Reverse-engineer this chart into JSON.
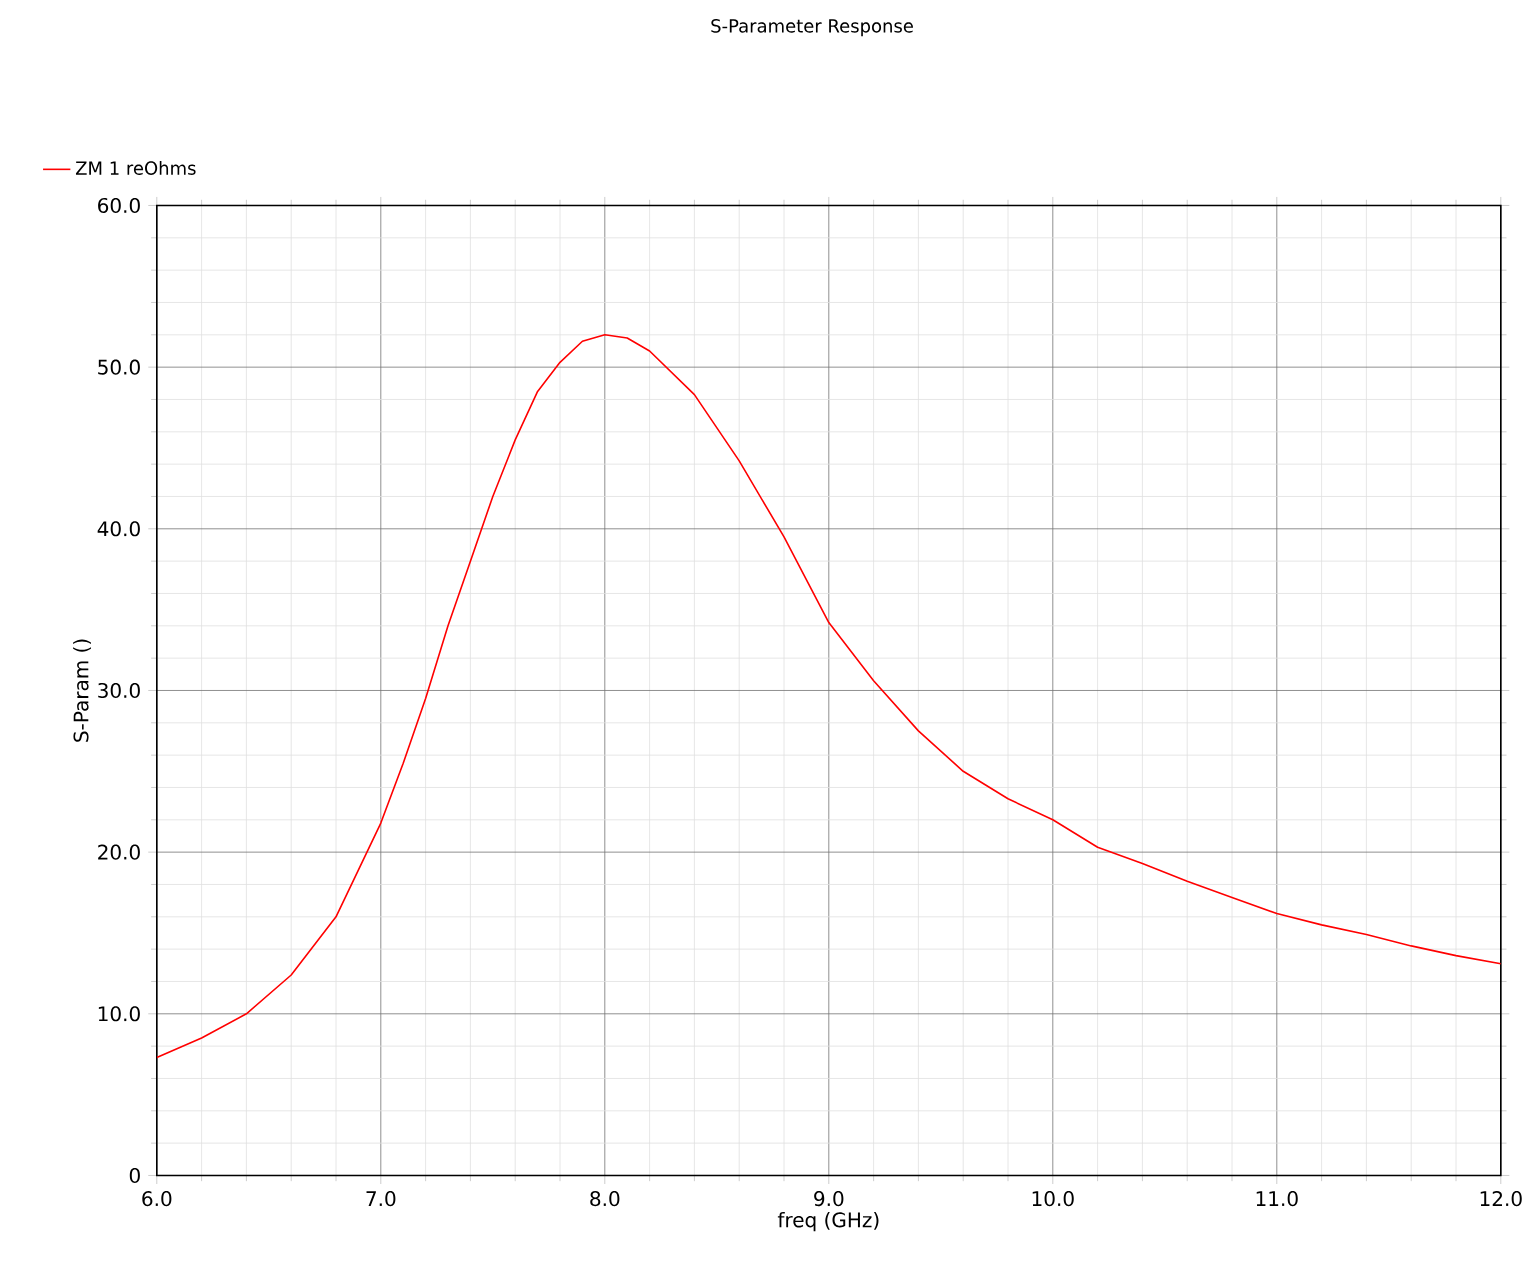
{
  "chart_data": {
    "type": "line",
    "title": "S-Parameter Response",
    "xlabel": "freq (GHz)",
    "ylabel": "S-Param ()",
    "series": [
      {
        "name": "ZM 1 reOhms",
        "color": "#ff0000",
        "x": [
          6.0,
          6.2,
          6.4,
          6.6,
          6.8,
          7.0,
          7.1,
          7.2,
          7.3,
          7.4,
          7.5,
          7.6,
          7.7,
          7.8,
          7.9,
          8.0,
          8.1,
          8.2,
          8.4,
          8.6,
          8.8,
          9.0,
          9.2,
          9.4,
          9.6,
          9.8,
          10.0,
          10.2,
          10.4,
          10.6,
          10.8,
          11.0,
          11.2,
          11.4,
          11.6,
          11.8,
          12.0
        ],
        "values": [
          7.3,
          8.5,
          10.0,
          12.4,
          16.0,
          21.8,
          25.5,
          29.5,
          34.0,
          38.0,
          42.0,
          45.5,
          48.5,
          50.3,
          51.6,
          52.0,
          51.8,
          51.0,
          48.3,
          44.2,
          39.5,
          34.2,
          30.6,
          27.5,
          25.0,
          23.3,
          22.0,
          20.3,
          19.3,
          18.2,
          17.2,
          16.2,
          15.5,
          14.9,
          14.2,
          13.6,
          13.1
        ]
      }
    ],
    "xlim": [
      6.0,
      12.0
    ],
    "ylim": [
      0,
      60
    ],
    "xticks": [
      {
        "value": 6,
        "label": "6.0"
      },
      {
        "value": 7,
        "label": "7.0"
      },
      {
        "value": 8,
        "label": "8.0"
      },
      {
        "value": 9,
        "label": "9.0"
      },
      {
        "value": 10,
        "label": "10.0"
      },
      {
        "value": 11,
        "label": "11.0"
      },
      {
        "value": 12,
        "label": "12.0"
      }
    ],
    "yticks": [
      0,
      {
        "value": 10,
        "label": "10.0"
      },
      {
        "value": 20,
        "label": "20.0"
      },
      {
        "value": 30,
        "label": "30.0"
      },
      {
        "value": 40,
        "label": "40.0"
      },
      {
        "value": 50,
        "label": "50.0"
      },
      {
        "value": 60,
        "label": "60.0"
      }
    ],
    "grid": true,
    "legend": "top left",
    "marker": "none",
    "line_style": "solid"
  }
}
